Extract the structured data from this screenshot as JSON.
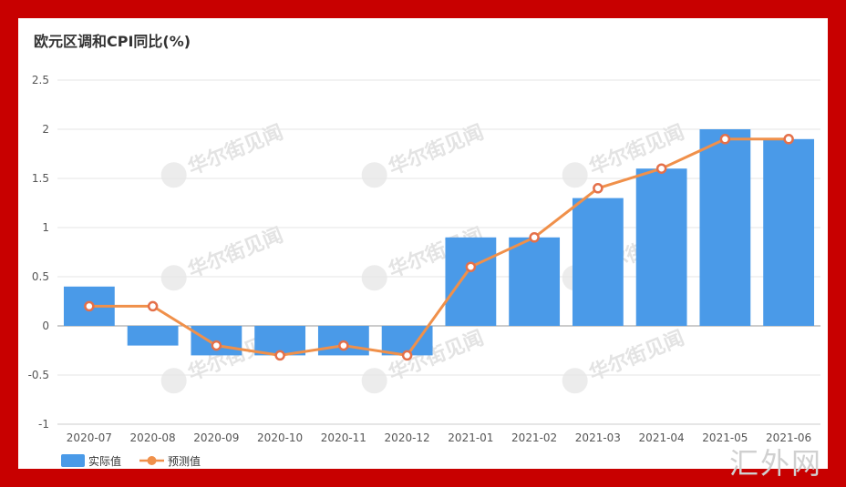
{
  "chart_data": {
    "type": "bar",
    "title": "欧元区调和CPI同比(%)",
    "categories": [
      "2020-07",
      "2020-08",
      "2020-09",
      "2020-10",
      "2020-11",
      "2020-12",
      "2021-01",
      "2021-02",
      "2021-03",
      "2021-04",
      "2021-05",
      "2021-06"
    ],
    "series": [
      {
        "name": "实际值",
        "type": "bar",
        "color": "#4a9ae8",
        "values": [
          0.4,
          -0.2,
          -0.3,
          -0.3,
          -0.3,
          -0.3,
          0.9,
          0.9,
          1.3,
          1.6,
          2.0,
          1.9
        ]
      },
      {
        "name": "预测值",
        "type": "line",
        "color": "#f0904a",
        "values": [
          0.2,
          0.2,
          -0.2,
          -0.3,
          -0.2,
          -0.3,
          0.6,
          0.9,
          1.4,
          1.6,
          1.9,
          1.9
        ]
      }
    ],
    "ylim": [
      -1,
      2.5
    ],
    "yticks": [
      "2.5",
      "2",
      "1.5",
      "1",
      "0.5",
      "0",
      "-0.5",
      "-1"
    ],
    "legend_position": "bottom-left",
    "grid": true
  },
  "watermark_text": "华尔街见闻",
  "corner_watermark": "汇外网"
}
